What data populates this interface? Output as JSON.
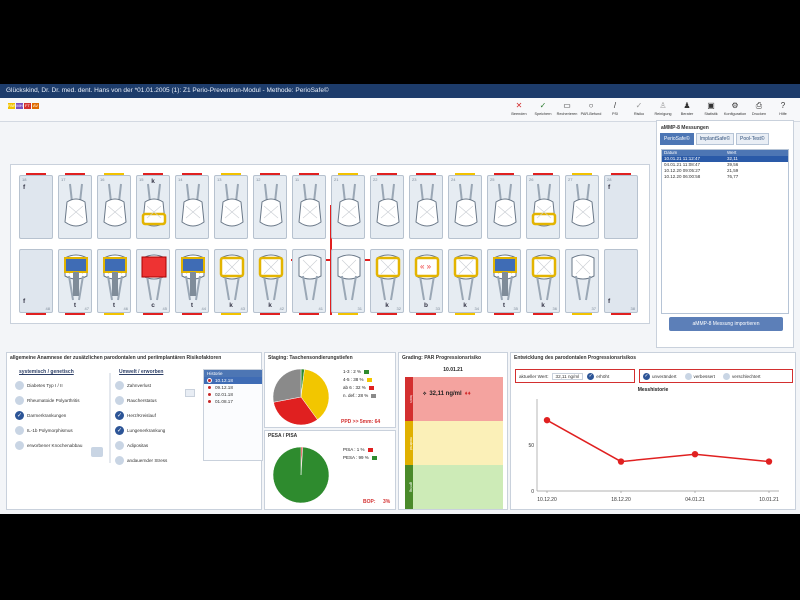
{
  "window": {
    "title": "Glückskind, Dr. Dr. med. dent. Hans von der *01.01.2005 (1): Z1 Perio-Prevention-Modul - Methode: PerioSafe©"
  },
  "chips": [
    "PAR",
    "MH",
    "FT",
    "AV"
  ],
  "toolbar": [
    {
      "label": "Beenden",
      "icon": "close-icon",
      "glyph": "✕",
      "color": "#d32f2f"
    },
    {
      "label": "Speichern",
      "icon": "check-icon",
      "glyph": "✓",
      "color": "#2e7d32"
    },
    {
      "label": "Recherieren",
      "icon": "folder-icon",
      "glyph": "▭",
      "color": "#333"
    },
    {
      "label": "PAR-Befund",
      "icon": "circle-icon",
      "glyph": "○",
      "color": "#333"
    },
    {
      "label": "PSI",
      "icon": "pen-icon",
      "glyph": "/",
      "color": "#333"
    },
    {
      "label": "Risiko",
      "icon": "check-icon",
      "glyph": "✓",
      "color": "#999"
    },
    {
      "label": "Reinigung",
      "icon": "person-icon",
      "glyph": "♙",
      "color": "#999"
    },
    {
      "label": "Berater",
      "icon": "user-icon",
      "glyph": "♟",
      "color": "#333"
    },
    {
      "label": "Statistik",
      "icon": "monitor-icon",
      "glyph": "▣",
      "color": "#333"
    },
    {
      "label": "Konfiguration",
      "icon": "gear-icon",
      "glyph": "⚙",
      "color": "#333"
    },
    {
      "label": "Drucken",
      "icon": "printer-icon",
      "glyph": "⎙",
      "color": "#333"
    },
    {
      "label": "Hilfe",
      "icon": "help-icon",
      "glyph": "?",
      "color": "#333"
    }
  ],
  "dental_chart": {
    "upper": [
      {
        "num": "18",
        "letter": "f",
        "restored": false,
        "missing": true
      },
      {
        "num": "17",
        "letter": "",
        "restored": false
      },
      {
        "num": "16",
        "letter": "",
        "restored": false
      },
      {
        "num": "15",
        "letter": "k",
        "restored": true
      },
      {
        "num": "14",
        "letter": "",
        "restored": false
      },
      {
        "num": "13",
        "letter": "",
        "restored": false
      },
      {
        "num": "12",
        "letter": "",
        "restored": false
      },
      {
        "num": "11",
        "letter": "",
        "restored": false
      },
      {
        "num": "21",
        "letter": "",
        "restored": false
      },
      {
        "num": "22",
        "letter": "",
        "restored": false
      },
      {
        "num": "23",
        "letter": "",
        "restored": false
      },
      {
        "num": "24",
        "letter": "",
        "restored": false
      },
      {
        "num": "25",
        "letter": "",
        "restored": false
      },
      {
        "num": "26",
        "letter": "",
        "restored": true
      },
      {
        "num": "27",
        "letter": "",
        "restored": false
      },
      {
        "num": "28",
        "letter": "f",
        "restored": false,
        "missing": true
      }
    ],
    "lower": [
      {
        "num": "48",
        "letter": "f",
        "missing": true
      },
      {
        "num": "47",
        "letter": "t",
        "implant": true
      },
      {
        "num": "46",
        "letter": "t",
        "implant": true
      },
      {
        "num": "45",
        "letter": "c",
        "caries": true
      },
      {
        "num": "44",
        "letter": "t",
        "implant": true
      },
      {
        "num": "43",
        "letter": "k",
        "restored": true
      },
      {
        "num": "42",
        "letter": "k",
        "restored": true
      },
      {
        "num": "41",
        "letter": "",
        "restored": false
      },
      {
        "num": "31",
        "letter": "",
        "restored": false
      },
      {
        "num": "32",
        "letter": "k",
        "restored": true
      },
      {
        "num": "33",
        "letter": "b",
        "bridge": true
      },
      {
        "num": "34",
        "letter": "k",
        "restored": true
      },
      {
        "num": "35",
        "letter": "t",
        "implant": true
      },
      {
        "num": "36",
        "letter": "k",
        "restored": true
      },
      {
        "num": "37",
        "letter": "",
        "restored": false
      },
      {
        "num": "38",
        "letter": "f",
        "missing": true
      }
    ]
  },
  "ammp8": {
    "title": "aMMP-8 Messungen",
    "tabs": [
      "PerioSafe©",
      "ImplantSafe©",
      "Pool-Test©"
    ],
    "headers": [
      "Datum",
      "Wert"
    ],
    "rows": [
      [
        "10.01.21 11:12:47",
        "32,11"
      ],
      [
        "04.01.21 11:08:47",
        "39,56"
      ],
      [
        "10.12.20 09:05:27",
        "21,59"
      ],
      [
        "10.12.20 06:00:58",
        "76,77"
      ]
    ],
    "import_label": "aMMP-8 Messung importieren"
  },
  "anamnese": {
    "title": "allgemeine Anamnese der zusätzlichen parodontalen und periimplantären Risikofaktoren",
    "col1_title": "systemisch / genetisch",
    "col1": [
      {
        "label": "Diabetes Typ I / II",
        "on": false
      },
      {
        "label": "Rheumatoide Polyarthritis",
        "on": false
      },
      {
        "label": "Darmerkrankungen",
        "on": true
      },
      {
        "label": "IL-1b Polymorphismus",
        "on": false
      },
      {
        "label": "erworbener Knochenabbau",
        "on": false
      }
    ],
    "col2_title": "Umwelt / erworben",
    "col2": [
      {
        "label": "Zahnverlust",
        "on": false
      },
      {
        "label": "Raucherstatus",
        "on": false
      },
      {
        "label": "Herz/Kreislauf",
        "on": true
      },
      {
        "label": "Lungenerkrankung",
        "on": true
      },
      {
        "label": "Adipositas",
        "on": false
      },
      {
        "label": "andauernder Stress",
        "on": false
      }
    ],
    "history_title": "Historie",
    "history": [
      "10.12.18",
      "09.12.18",
      "02.01.18",
      "01.08.17"
    ]
  },
  "staging": {
    "title": "Staging: Taschensondierungstiefen",
    "legend": [
      {
        "label": "1-3 : 2 %",
        "color": "#2e8b2e"
      },
      {
        "label": "4-5 : 38 %",
        "color": "#f2c600"
      },
      {
        "label": "ab 6 : 32 %",
        "color": "#e02020"
      },
      {
        "label": "n. def.: 28 %",
        "color": "#8a8a8a"
      }
    ],
    "ppd_note": "PPD >> 5mm: 64",
    "pie1": [
      2,
      38,
      32,
      28
    ],
    "pesa_title": "PESA / PISA",
    "legend2": [
      {
        "label": "PISA : 1 %",
        "color": "#e02020"
      },
      {
        "label": "PESA : 99 %",
        "color": "#2e8b2e"
      }
    ],
    "bop_label": "BOP:",
    "bop_value": "3%",
    "pie2": [
      1,
      99
    ]
  },
  "grading": {
    "title": "Grading: PAR Progressionsrisiko",
    "date": "10.01.21",
    "value": "32,11 ng/ml",
    "levels": [
      "hoch",
      "moderat",
      "gering"
    ]
  },
  "evolution": {
    "title": "Entwicklung des parodontalen Progressionsrisikos",
    "current_label": "aktueller Wert:",
    "current_value": "32,11 ng/ml",
    "options": [
      "erhöht",
      "unverändert",
      "verbessert",
      "verschlechtert"
    ],
    "chart_title": "Messhistorie"
  },
  "chart_data": {
    "type": "line",
    "title": "Messhistorie",
    "categories": [
      "10.12.20",
      "18.12.20",
      "04.01.21",
      "10.01.21"
    ],
    "values": [
      77,
      32,
      40,
      32
    ],
    "ylim": [
      0,
      100
    ],
    "yticks": [
      0,
      50
    ],
    "color": "#e02020"
  }
}
